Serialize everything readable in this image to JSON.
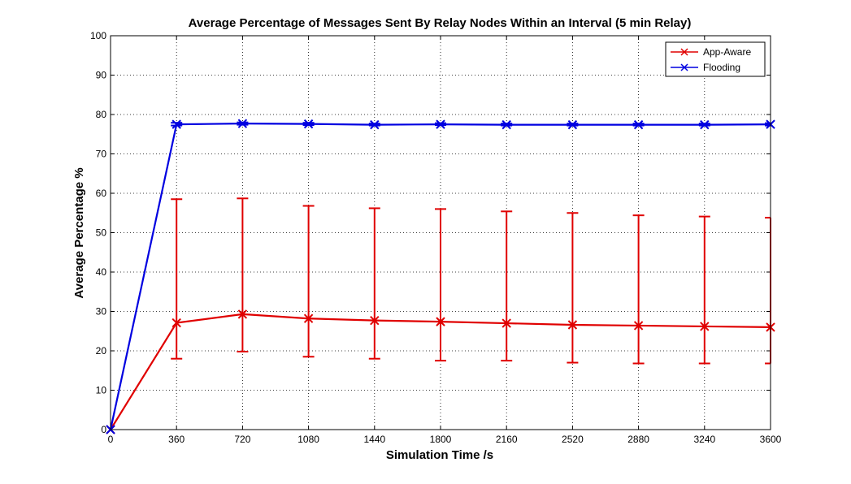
{
  "chart_data": {
    "type": "line",
    "title": "Average Percentage of Messages Sent By Relay Nodes Within an Interval (5 min Relay)",
    "xlabel": "Simulation Time /s",
    "ylabel": "Average Percentage %",
    "xlim": [
      0,
      3600
    ],
    "ylim": [
      0,
      100
    ],
    "xticks": [
      0,
      360,
      720,
      1080,
      1440,
      1800,
      2160,
      2520,
      2880,
      3240,
      3600
    ],
    "yticks": [
      0,
      10,
      20,
      30,
      40,
      50,
      60,
      70,
      80,
      90,
      100
    ],
    "grid": true,
    "legend_position": "top-right",
    "x": [
      0,
      360,
      720,
      1080,
      1440,
      1800,
      2160,
      2520,
      2880,
      3240,
      3600
    ],
    "series": [
      {
        "name": "App-Aware",
        "color": "#e00000",
        "marker": "x",
        "values": [
          0,
          27.1,
          29.3,
          28.2,
          27.7,
          27.4,
          27.0,
          26.6,
          26.4,
          26.2,
          26.0
        ],
        "error_low": [
          null,
          18.0,
          19.8,
          18.5,
          18.0,
          17.5,
          17.5,
          17.0,
          16.8,
          16.8,
          16.8
        ],
        "error_high": [
          null,
          58.5,
          58.7,
          56.8,
          56.2,
          56.0,
          55.4,
          55.0,
          54.4,
          54.1,
          53.8
        ]
      },
      {
        "name": "Flooding",
        "color": "#0000e0",
        "marker": "x",
        "values": [
          0,
          77.5,
          77.7,
          77.6,
          77.4,
          77.5,
          77.4,
          77.4,
          77.4,
          77.4,
          77.5
        ],
        "error_low": [
          null,
          77.2,
          77.4,
          77.3,
          77.2,
          77.3,
          77.2,
          77.2,
          77.2,
          77.2,
          77.2
        ],
        "error_high": [
          null,
          77.9,
          78.0,
          77.9,
          77.7,
          77.8,
          77.7,
          77.7,
          77.7,
          77.7,
          77.8
        ]
      }
    ]
  }
}
